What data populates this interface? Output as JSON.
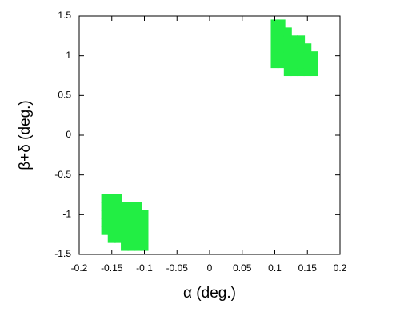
{
  "chart_data": {
    "type": "scatter",
    "xlabel": "α (deg.)",
    "ylabel": "β+δ (deg.)",
    "color": "#22ee44",
    "x": [
      0.1,
      0.1,
      0.1,
      0.1,
      0.1,
      0.1,
      0.11,
      0.11,
      0.11,
      0.11,
      0.11,
      0.11,
      0.12,
      0.12,
      0.12,
      0.12,
      0.12,
      0.12,
      0.13,
      0.13,
      0.13,
      0.13,
      0.13,
      0.14,
      0.14,
      0.14,
      0.14,
      0.14,
      0.15,
      0.15,
      0.15,
      0.15,
      0.16,
      0.16,
      0.16,
      -0.16,
      -0.16,
      -0.16,
      -0.16,
      -0.16,
      -0.15,
      -0.15,
      -0.15,
      -0.15,
      -0.15,
      -0.15,
      -0.14,
      -0.14,
      -0.14,
      -0.14,
      -0.14,
      -0.14,
      -0.13,
      -0.13,
      -0.13,
      -0.13,
      -0.13,
      -0.13,
      -0.12,
      -0.12,
      -0.12,
      -0.12,
      -0.12,
      -0.12,
      -0.11,
      -0.11,
      -0.11,
      -0.11,
      -0.11,
      -0.11,
      -0.1,
      -0.1,
      -0.1,
      -0.1,
      -0.1
    ],
    "y": [
      0.9,
      1,
      1.1,
      1.2,
      1.3,
      1.4,
      0.9,
      1,
      1.1,
      1.2,
      1.3,
      1.4,
      0.8,
      0.9,
      1,
      1.1,
      1.2,
      1.3,
      0.8,
      0.9,
      1,
      1.1,
      1.2,
      0.8,
      0.9,
      1,
      1.1,
      1.2,
      0.8,
      0.9,
      1,
      1.1,
      0.8,
      0.9,
      1,
      -0.8,
      -0.9,
      -1,
      -1.1,
      -1.2,
      -0.8,
      -0.9,
      -1,
      -1.1,
      -1.2,
      -1.3,
      -0.8,
      -0.9,
      -1,
      -1.1,
      -1.2,
      -1.3,
      -0.9,
      -1,
      -1.1,
      -1.2,
      -1.3,
      -1.4,
      -0.9,
      -1,
      -1.1,
      -1.2,
      -1.3,
      -1.4,
      -0.9,
      -1,
      -1.1,
      -1.2,
      -1.3,
      -1.4,
      -1,
      -1.1,
      -1.2,
      -1.3,
      -1.4
    ],
    "xlim": [
      -0.2,
      0.2
    ],
    "xticks": [
      -0.2,
      -0.15,
      -0.1,
      -0.05,
      0,
      0.05,
      0.1,
      0.15,
      0.2
    ],
    "ylim": [
      -1.5,
      1.5
    ],
    "yticks": [
      -1.5,
      -1,
      -0.5,
      0,
      0.5,
      1,
      1.5
    ]
  }
}
